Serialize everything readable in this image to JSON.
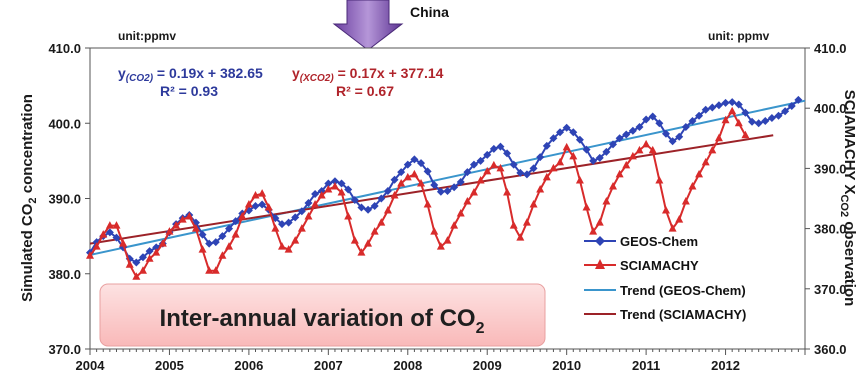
{
  "chart_data": {
    "type": "line",
    "header_label": "China",
    "banner": {
      "text": "Inter-annual variation of CO",
      "subscript": "2"
    },
    "left_axis": {
      "title": "Simulated CO",
      "title_sub": "2",
      "title_tail": " concentration",
      "unit": "unit:ppmv",
      "range": [
        370.0,
        410.0
      ],
      "ticks": [
        "370.0",
        "380.0",
        "390.0",
        "400.0",
        "410.0"
      ]
    },
    "right_axis": {
      "title": "SCIAMACHY X",
      "title_sub": "CO2",
      "title_tail": " observation",
      "unit": "unit: ppmv",
      "range": [
        360.0,
        410.0
      ],
      "ticks": [
        "360.0",
        "370.0",
        "380.0",
        "390.0",
        "400.0",
        "410.0"
      ]
    },
    "x_axis": {
      "range": [
        2004,
        2013
      ],
      "ticks": [
        "2004",
        "2005",
        "2006",
        "2007",
        "2008",
        "2009",
        "2010",
        "2011",
        "2012"
      ]
    },
    "equations": [
      {
        "y": "y",
        "sub": "(CO2)",
        "rhs": " = 0.19x + 382.65",
        "r2": "R² = 0.93",
        "color": "#2d3a9c"
      },
      {
        "y": "y",
        "sub": "(XCO2)",
        "rhs": " = 0.17x + 377.14",
        "r2": "R² = 0.67",
        "color": "#b0242b"
      }
    ],
    "series": [
      {
        "name": "GEOS-Chem",
        "axis": "left",
        "color": "#2e44b5",
        "marker": "diamond",
        "x_start": 2004.0,
        "x_step": 0.0833333,
        "values": [
          382.8,
          384.2,
          385.0,
          385.5,
          384.8,
          383.5,
          382.0,
          381.5,
          382.2,
          383.0,
          383.5,
          384.0,
          385.5,
          386.6,
          387.4,
          387.8,
          386.8,
          385.2,
          384.0,
          384.2,
          385.0,
          386.0,
          387.0,
          388.0,
          388.4,
          389.0,
          389.2,
          388.5,
          387.4,
          386.6,
          386.8,
          387.5,
          388.3,
          389.4,
          390.6,
          391.0,
          392.0,
          392.3,
          392.0,
          391.2,
          389.8,
          388.8,
          388.5,
          389.0,
          390.0,
          391.0,
          392.5,
          393.5,
          394.5,
          395.2,
          394.7,
          393.6,
          391.8,
          390.9,
          391.0,
          391.5,
          392.2,
          393.5,
          394.5,
          395.0,
          395.8,
          396.6,
          396.9,
          396.0,
          394.5,
          393.4,
          393.2,
          394.0,
          395.5,
          397.0,
          398.0,
          398.8,
          399.4,
          398.8,
          397.8,
          396.5,
          395.0,
          395.4,
          396.2,
          397.2,
          398.0,
          398.5,
          399.0,
          399.5,
          400.5,
          400.9,
          400.0,
          398.6,
          397.6,
          398.2,
          399.5,
          400.3,
          401.0,
          401.8,
          402.1,
          402.4,
          402.7,
          402.8,
          402.5,
          401.4,
          400.2,
          400.0,
          400.3,
          400.7,
          401.0,
          401.6,
          402.3,
          403.1
        ]
      },
      {
        "name": "SCIAMACHY",
        "axis": "right",
        "color": "#d82b2b",
        "marker": "triangle",
        "x_start": 2004.0,
        "x_step": 0.0833333,
        "values": [
          375.5,
          377.0,
          379.0,
          380.5,
          380.5,
          377.5,
          374.0,
          372.0,
          373.0,
          375.0,
          376.0,
          377.5,
          379.5,
          380.5,
          381.5,
          382.0,
          380.0,
          376.5,
          373.0,
          373.0,
          375.5,
          377.0,
          379.0,
          382.0,
          384.0,
          385.5,
          385.8,
          383.5,
          380.0,
          377.0,
          376.5,
          378.0,
          380.0,
          382.0,
          384.0,
          385.5,
          386.5,
          387.0,
          386.0,
          382.0,
          378.0,
          376.0,
          377.5,
          379.5,
          381.0,
          383.0,
          385.5,
          387.5,
          388.5,
          389.0,
          387.5,
          384.0,
          379.5,
          377.0,
          378.0,
          380.5,
          382.5,
          384.5,
          386.0,
          388.0,
          389.5,
          390.5,
          390.0,
          386.0,
          380.5,
          378.5,
          381.0,
          384.0,
          386.5,
          388.5,
          390.0,
          391.0,
          393.5,
          392.0,
          388.0,
          383.5,
          379.5,
          381.0,
          384.5,
          387.0,
          389.0,
          390.5,
          392.0,
          393.0,
          394.0,
          393.0,
          388.0,
          383.0,
          380.0,
          381.5,
          384.5,
          387.0,
          389.0,
          391.0,
          393.0,
          395.0,
          398.0,
          399.5,
          397.5,
          395.5
        ]
      }
    ],
    "trends": [
      {
        "name": "Trend (GEOS-Chem)",
        "axis": "left",
        "color": "#3a95cc",
        "x": [
          2004.0,
          2013.0
        ],
        "y": [
          382.5,
          403.0
        ]
      },
      {
        "name": "Trend (SCIAMACHY)",
        "axis": "right",
        "color": "#9c2228",
        "x": [
          2004.0,
          2012.6
        ],
        "y": [
          377.5,
          395.5
        ]
      }
    ],
    "legend": {
      "position": "bottom-right",
      "entries": [
        "GEOS-Chem",
        "SCIAMACHY",
        "Trend (GEOS-Chem)",
        "Trend (SCIAMACHY)"
      ]
    },
    "grid": false
  }
}
